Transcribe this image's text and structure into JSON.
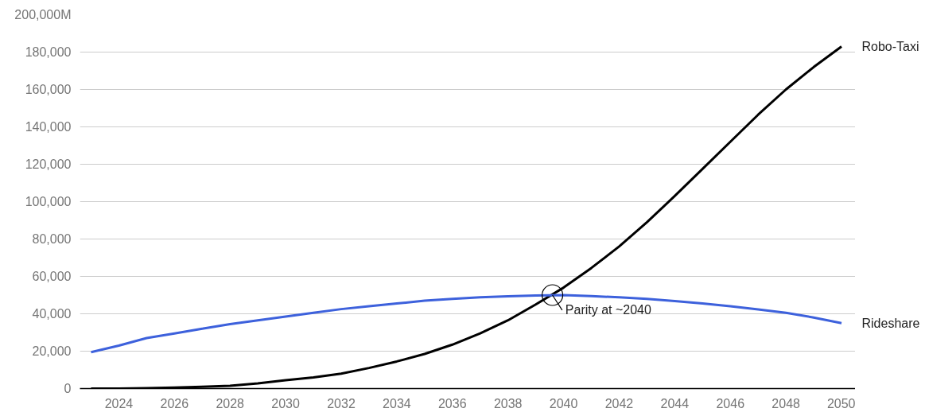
{
  "chart_data": {
    "type": "line",
    "x": [
      2023,
      2024,
      2025,
      2026,
      2027,
      2028,
      2029,
      2030,
      2031,
      2032,
      2033,
      2034,
      2035,
      2036,
      2037,
      2038,
      2039,
      2040,
      2041,
      2042,
      2043,
      2044,
      2045,
      2046,
      2047,
      2048,
      2049,
      2050
    ],
    "series": [
      {
        "name": "Robo-Taxi",
        "color": "#000000",
        "values": [
          0,
          0,
          200,
          500,
          1000,
          1500,
          2800,
          4500,
          6000,
          8000,
          11000,
          14500,
          18500,
          23500,
          29500,
          36500,
          45000,
          54000,
          64500,
          76000,
          89000,
          103000,
          117500,
          132000,
          146500,
          160000,
          172000,
          183000
        ]
      },
      {
        "name": "Rideshare",
        "color": "#3d61dc",
        "values": [
          19500,
          23000,
          27000,
          29500,
          32000,
          34500,
          36500,
          38500,
          40500,
          42500,
          44000,
          45500,
          47000,
          48000,
          48800,
          49400,
          49800,
          50000,
          49500,
          48800,
          48000,
          46800,
          45500,
          44000,
          42300,
          40500,
          38000,
          35000
        ]
      }
    ],
    "xlim": [
      2022.6,
      2050.5
    ],
    "xticks": [
      2024,
      2026,
      2028,
      2030,
      2032,
      2034,
      2036,
      2038,
      2040,
      2042,
      2044,
      2046,
      2048,
      2050
    ],
    "ylim": [
      0,
      200000
    ],
    "yticks": [
      0,
      {
        "value": 20000,
        "label": "20,000"
      },
      {
        "value": 40000,
        "label": "40,000"
      },
      {
        "value": 60000,
        "label": "60,000"
      },
      {
        "value": 80000,
        "label": "80,000"
      },
      {
        "value": 100000,
        "label": "100,000"
      },
      {
        "value": 120000,
        "label": "120,000"
      },
      {
        "value": 140000,
        "label": "140,000"
      },
      {
        "value": 160000,
        "label": "160,000"
      },
      {
        "value": 180000,
        "label": "180,000"
      },
      {
        "value": 200000,
        "label": "200,000M"
      }
    ],
    "grid": "y",
    "marker": "none",
    "line_style": "solid",
    "annotations": [
      {
        "text": "Parity at ~2040",
        "x": 2039.6,
        "y": 50000
      }
    ]
  }
}
